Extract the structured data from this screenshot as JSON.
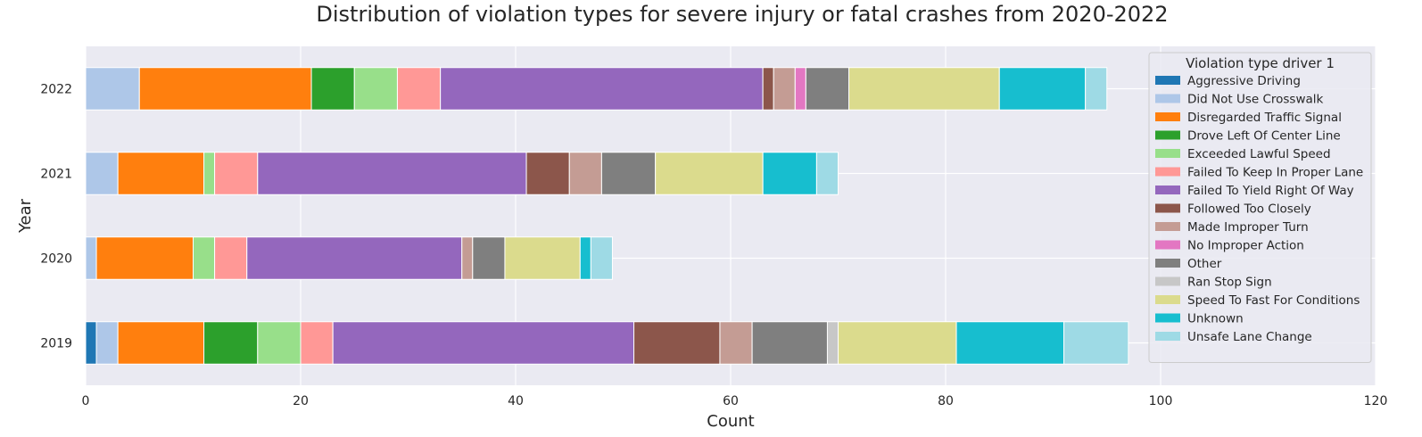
{
  "chart_data": {
    "type": "bar",
    "orientation": "horizontal",
    "stacked": true,
    "title": "Distribution of violation types for severe injury or fatal crashes from 2020-2022",
    "xlabel": "Count",
    "ylabel": "Year",
    "xlim": [
      0,
      120
    ],
    "xticks": [
      "0",
      "20",
      "40",
      "60",
      "80",
      "100",
      "120"
    ],
    "grid": true,
    "legend_title": "Violation type driver 1",
    "legend_position": "top-right",
    "categories": [
      "2019",
      "2020",
      "2021",
      "2022"
    ],
    "series": [
      {
        "name": "Aggressive Driving",
        "color": "#1f77b4",
        "values": [
          1,
          0,
          0,
          0
        ]
      },
      {
        "name": "Did Not Use Crosswalk",
        "color": "#aec7e8",
        "values": [
          2,
          1,
          3,
          5
        ]
      },
      {
        "name": "Disregarded Traffic Signal",
        "color": "#ff7f0e",
        "values": [
          8,
          9,
          8,
          16
        ]
      },
      {
        "name": "Drove Left Of Center Line",
        "color": "#2ca02c",
        "values": [
          5,
          0,
          0,
          4
        ]
      },
      {
        "name": "Exceeded Lawful Speed",
        "color": "#98df8a",
        "values": [
          4,
          2,
          1,
          4
        ]
      },
      {
        "name": "Failed To Keep In Proper Lane",
        "color": "#ff9896",
        "values": [
          3,
          3,
          4,
          4
        ]
      },
      {
        "name": "Failed To Yield Right Of Way",
        "color": "#9467bd",
        "values": [
          28,
          20,
          25,
          30
        ]
      },
      {
        "name": "Followed Too Closely",
        "color": "#8c564b",
        "values": [
          8,
          0,
          4,
          1
        ]
      },
      {
        "name": "Made Improper Turn",
        "color": "#c49c94",
        "values": [
          3,
          1,
          3,
          2
        ]
      },
      {
        "name": "No Improper Action",
        "color": "#e377c2",
        "values": [
          0,
          0,
          0,
          1
        ]
      },
      {
        "name": "Other",
        "color": "#7f7f7f",
        "values": [
          7,
          3,
          5,
          4
        ]
      },
      {
        "name": "Ran Stop Sign",
        "color": "#c7c7c7",
        "values": [
          1,
          0,
          0,
          0
        ]
      },
      {
        "name": "Speed To Fast For Conditions",
        "color": "#dbdb8d",
        "values": [
          11,
          7,
          10,
          14
        ]
      },
      {
        "name": "Unknown",
        "color": "#17becf",
        "values": [
          10,
          1,
          5,
          8
        ]
      },
      {
        "name": "Unsafe Lane Change",
        "color": "#9edae5",
        "values": [
          6,
          2,
          2,
          2
        ]
      }
    ]
  },
  "colors": {
    "plot_background": "#eaeaf2",
    "grid": "#ffffff",
    "text": "#262626"
  }
}
